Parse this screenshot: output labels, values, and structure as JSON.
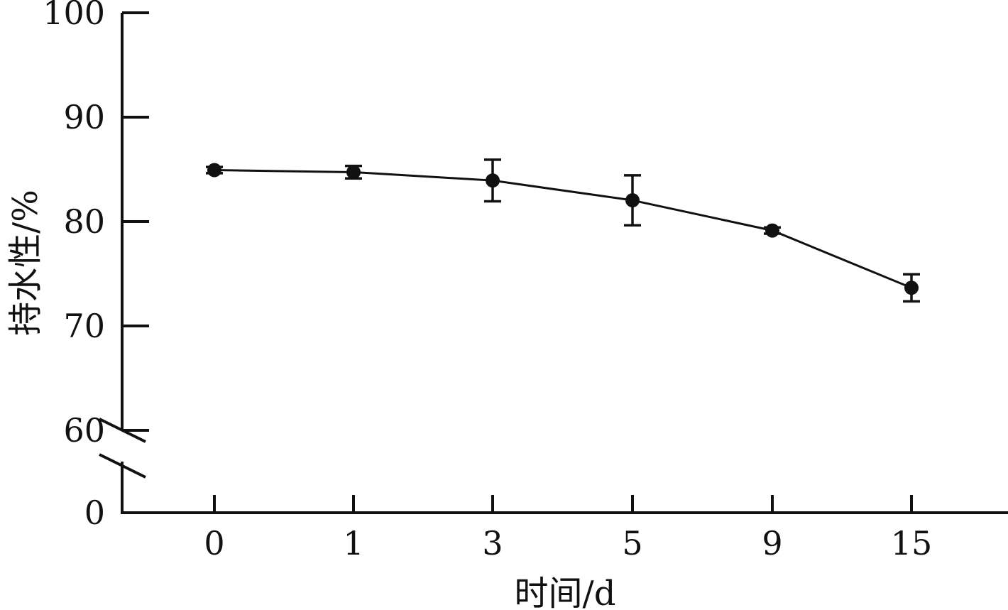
{
  "chart_data": {
    "type": "line",
    "title": "",
    "xlabel": "时间/d",
    "ylabel": "持水性/%",
    "categories": [
      "0",
      "1",
      "3",
      "5",
      "9",
      "15"
    ],
    "series": [
      {
        "values": [
          84.9,
          84.7,
          83.9,
          82.0,
          79.1,
          73.6
        ],
        "errors": [
          0.3,
          0.6,
          2.0,
          2.4,
          0.3,
          1.3
        ]
      }
    ],
    "yticks": [
      "100",
      "90",
      "80",
      "70",
      "60",
      "0"
    ],
    "ylim": [
      60,
      100
    ],
    "y_axis_break": true,
    "grid": false,
    "legend": "none",
    "colors": {
      "line": "#111111"
    }
  }
}
